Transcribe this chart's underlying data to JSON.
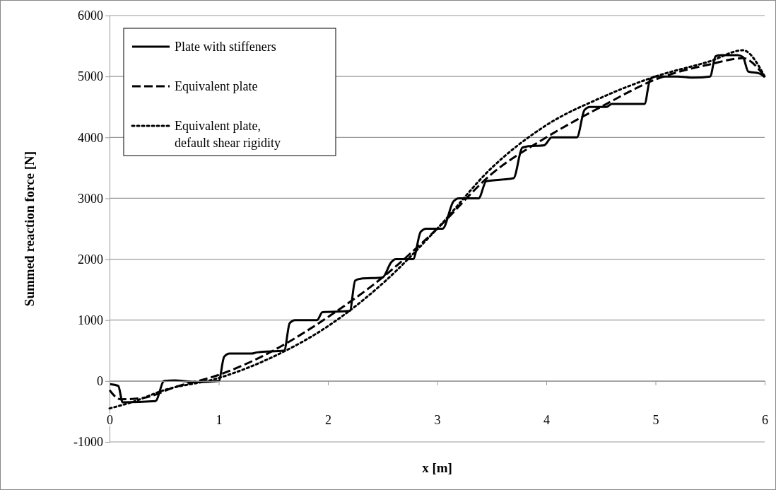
{
  "chart_data": {
    "type": "line",
    "xlabel": "x [m]",
    "ylabel": "Summed reaction force [N]",
    "xlim": [
      0,
      6
    ],
    "xticks": [
      0,
      1,
      2,
      3,
      4,
      5,
      6
    ],
    "ylim": [
      -1000,
      6000
    ],
    "yticks": [
      -1000,
      0,
      1000,
      2000,
      3000,
      4000,
      5000,
      6000
    ],
    "grid": "y",
    "legend": "top left",
    "marker": "none",
    "series": [
      {
        "name": "Plate with stiffeners",
        "color": "#000000",
        "line_style": "solid",
        "x": [
          0,
          0.08,
          0.12,
          0.42,
          0.5,
          0.6,
          0.8,
          1.0,
          1.05,
          1.1,
          1.3,
          1.35,
          1.6,
          1.65,
          1.7,
          1.9,
          1.95,
          2.2,
          2.25,
          2.3,
          2.5,
          2.58,
          2.62,
          2.78,
          2.85,
          2.9,
          3.05,
          3.15,
          3.2,
          3.38,
          3.45,
          3.7,
          3.78,
          3.82,
          3.98,
          4.05,
          4.28,
          4.35,
          4.4,
          4.55,
          4.6,
          4.9,
          4.95,
          5.0,
          5.2,
          5.35,
          5.5,
          5.55,
          5.6,
          5.75,
          5.8,
          5.85,
          5.95,
          6.0
        ],
        "values": [
          -50,
          -80,
          -350,
          -330,
          0,
          10,
          -20,
          0,
          400,
          450,
          450,
          470,
          500,
          950,
          1000,
          1000,
          1130,
          1150,
          1650,
          1680,
          1700,
          1950,
          2000,
          2000,
          2450,
          2500,
          2500,
          2950,
          3000,
          3000,
          3280,
          3330,
          3830,
          3850,
          3870,
          4000,
          4000,
          4450,
          4500,
          4500,
          4550,
          4550,
          4950,
          5000,
          5000,
          4980,
          5000,
          5330,
          5350,
          5350,
          5320,
          5080,
          5050,
          4990
        ]
      },
      {
        "name": "Equivalent plate",
        "color": "#000000",
        "line_style": "dashed",
        "x": [
          0,
          0.1,
          0.3,
          0.6,
          1.0,
          1.5,
          2.0,
          2.5,
          3.0,
          3.5,
          4.0,
          4.5,
          5.0,
          5.5,
          5.8,
          6.0
        ],
        "values": [
          -150,
          -300,
          -280,
          -100,
          100,
          500,
          1050,
          1700,
          2500,
          3400,
          4000,
          4500,
          4950,
          5200,
          5300,
          5000
        ]
      },
      {
        "name": "Equivalent plate, default shear rigidity",
        "color": "#000000",
        "line_style": "dotted",
        "x": [
          0,
          0.2,
          0.5,
          1.0,
          1.5,
          2.0,
          2.5,
          3.0,
          3.5,
          4.0,
          4.5,
          5.0,
          5.5,
          5.8,
          6.0
        ],
        "values": [
          -450,
          -350,
          -150,
          50,
          400,
          900,
          1600,
          2500,
          3500,
          4200,
          4650,
          5000,
          5250,
          5430,
          5000
        ]
      }
    ]
  }
}
